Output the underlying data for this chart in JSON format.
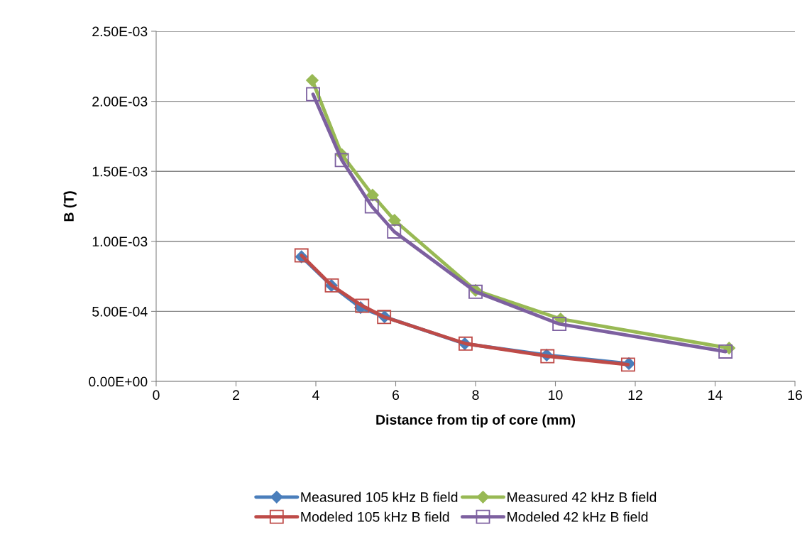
{
  "chart_data": {
    "type": "line",
    "xlabel": "Distance from tip of core (mm)",
    "ylabel": "B (T)",
    "xlim": [
      0,
      16
    ],
    "xticks": [
      0,
      2,
      4,
      6,
      8,
      10,
      12,
      14,
      16
    ],
    "ylim": [
      0,
      0.0025
    ],
    "yticks": [
      {
        "value": 0,
        "label": "0.00E+00"
      },
      {
        "value": 0.0005,
        "label": "5.00E-04"
      },
      {
        "value": 0.001,
        "label": "1.00E-03"
      },
      {
        "value": 0.0015,
        "label": "1.50E-03"
      },
      {
        "value": 0.002,
        "label": "2.00E-03"
      },
      {
        "value": 0.0025,
        "label": "2.50E-03"
      }
    ],
    "grid": "y",
    "legend": "bottom",
    "line_style": "solid",
    "series": [
      {
        "name": "Measured 105 kHz B field",
        "color": "#4a7ebb",
        "marker": "diamond",
        "x": [
          3.64,
          4.39,
          5.12,
          5.72,
          7.73,
          9.78,
          11.84
        ],
        "values": [
          0.00089,
          0.000685,
          0.000527,
          0.000461,
          0.000269,
          0.000188,
          0.000127
        ]
      },
      {
        "name": "Modeled 105 kHz B field",
        "color": "#be4b48",
        "marker": "square",
        "x": [
          3.64,
          4.4,
          5.16,
          5.71,
          7.75,
          9.8,
          11.82
        ],
        "values": [
          0.0009,
          0.000685,
          0.00054,
          0.00046,
          0.00027,
          0.00018,
          0.00012
        ]
      },
      {
        "name": "Measured 42 kHz B field",
        "color": "#98b954",
        "marker": "diamond",
        "x": [
          3.91,
          4.65,
          5.42,
          5.97,
          8.0,
          10.13,
          14.35
        ],
        "values": [
          0.00215,
          0.00162,
          0.00133,
          0.00115,
          0.00065,
          0.000446,
          0.000238
        ]
      },
      {
        "name": "Modeled 42 kHz B field",
        "color": "#7d60a0",
        "marker": "square",
        "x": [
          3.93,
          4.65,
          5.4,
          5.96,
          8.0,
          10.1,
          14.26
        ],
        "values": [
          0.00205,
          0.00158,
          0.00125,
          0.00107,
          0.00064,
          0.00041,
          0.000213
        ]
      }
    ]
  }
}
